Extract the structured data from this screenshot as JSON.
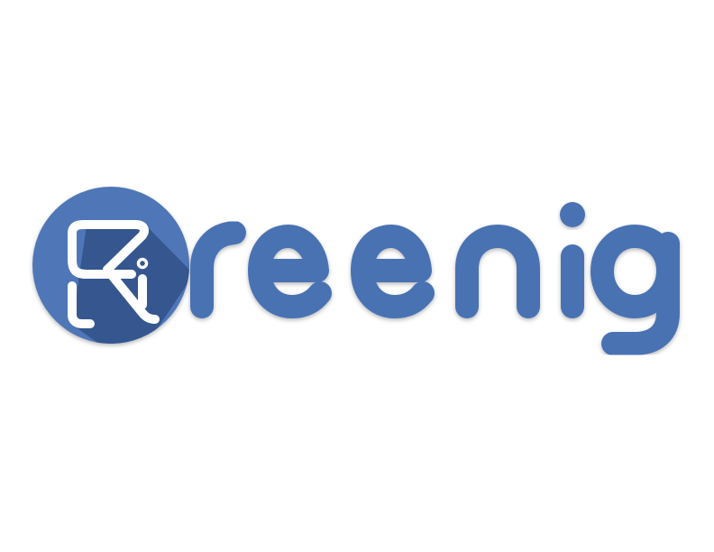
{
  "logo": {
    "wordmark": "Rreenig",
    "colors": {
      "brand_blue": "#4a72b3",
      "badge_blue": "#4f77b7",
      "badge_shadow": "#34578f",
      "glyph_white": "#ffffff",
      "background": "#ffffff"
    }
  }
}
